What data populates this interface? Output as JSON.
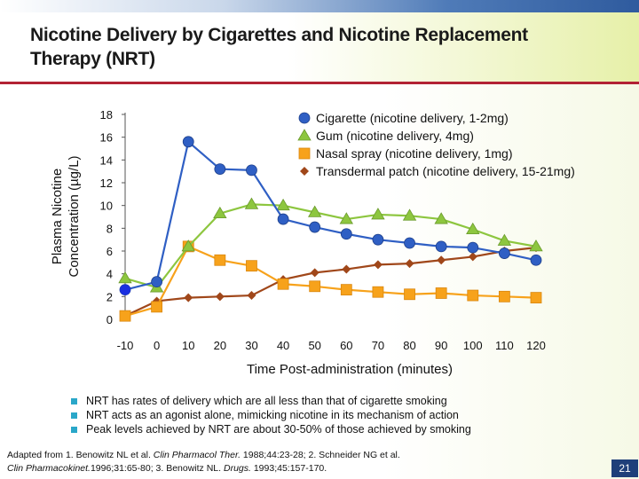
{
  "slide": {
    "title": "Nicotine Delivery by Cigarettes and Nicotine Replacement Therapy (NRT)",
    "page_number": "21"
  },
  "bullets": [
    "NRT has rates of delivery which are all less than that of cigarette smoking",
    "NRT acts as an agonist alone, mimicking nicotine in its mechanism of action",
    "Peak levels achieved by NRT are about 30-50% of those achieved by smoking"
  ],
  "references": {
    "line1_prefix": "Adapted from 1. Benowitz NL et al. ",
    "line1_journal1": "Clin Pharmacol Ther.",
    "line1_mid": " 1988;44:23-28;  2. Schneider NG et al.",
    "line2_journal": "Clin Pharmacokinet.",
    "line2_mid": "1996;31:65-80;  3. Benowitz NL. ",
    "line2_journal3": "Drugs.",
    "line2_end": " 1993;45:157-170."
  },
  "colors": {
    "cigarette": "#2f5fc4",
    "gum": "#8dc63f",
    "nasal_spray": "#f7a21b",
    "patch": "#a0471a",
    "accent_rule": "#b22234",
    "page_badge": "#1f3f7a"
  },
  "chart_data": {
    "type": "line",
    "xlabel": "Time Post-administration (minutes)",
    "ylabel_line1": "Plasma Nicotine",
    "ylabel_line2": "Concentration (µg/L)",
    "x_ticks": [
      -10,
      0,
      10,
      20,
      30,
      40,
      50,
      60,
      70,
      80,
      90,
      100,
      110,
      120
    ],
    "y_ticks": [
      0,
      2,
      4,
      6,
      8,
      10,
      12,
      14,
      16,
      18
    ],
    "xlim": [
      -10,
      120
    ],
    "ylim": [
      0,
      18
    ],
    "legend_position": "top-right",
    "series": [
      {
        "name": "Cigarette (nicotine delivery, 1-2mg)",
        "marker": "circle",
        "color": "#2f5fc4",
        "x": [
          -10,
          0,
          10,
          20,
          30,
          40,
          50,
          60,
          70,
          80,
          90,
          100,
          110,
          120
        ],
        "values": [
          2.6,
          3.3,
          15.6,
          13.2,
          13.1,
          8.8,
          8.1,
          7.5,
          7.0,
          6.7,
          6.4,
          6.3,
          5.8,
          5.2
        ]
      },
      {
        "name": "Gum (nicotine delivery, 4mg)",
        "marker": "triangle",
        "color": "#8dc63f",
        "x": [
          -10,
          0,
          10,
          20,
          30,
          40,
          50,
          60,
          70,
          80,
          90,
          100,
          110,
          120
        ],
        "values": [
          3.6,
          2.8,
          6.4,
          9.3,
          10.1,
          10.0,
          9.4,
          8.8,
          9.2,
          9.1,
          8.8,
          7.9,
          6.9,
          6.4
        ]
      },
      {
        "name": "Nasal spray (nicotine delivery, 1mg)",
        "marker": "square",
        "color": "#f7a21b",
        "x": [
          -10,
          0,
          10,
          20,
          30,
          40,
          50,
          60,
          70,
          80,
          90,
          100,
          110,
          120
        ],
        "values": [
          0.3,
          1.1,
          6.4,
          5.2,
          4.7,
          3.1,
          2.9,
          2.6,
          2.4,
          2.2,
          2.3,
          2.1,
          2.0,
          1.9
        ]
      },
      {
        "name": "Transdermal patch (nicotine delivery, 15-21mg)",
        "marker": "diamond",
        "color": "#a0471a",
        "x": [
          -10,
          0,
          10,
          20,
          30,
          40,
          50,
          60,
          70,
          80,
          90,
          100,
          110,
          120
        ],
        "values": [
          0.3,
          1.6,
          1.9,
          2.0,
          2.1,
          3.5,
          4.1,
          4.4,
          4.8,
          4.9,
          5.2,
          5.5,
          6.0,
          6.3
        ]
      }
    ]
  }
}
